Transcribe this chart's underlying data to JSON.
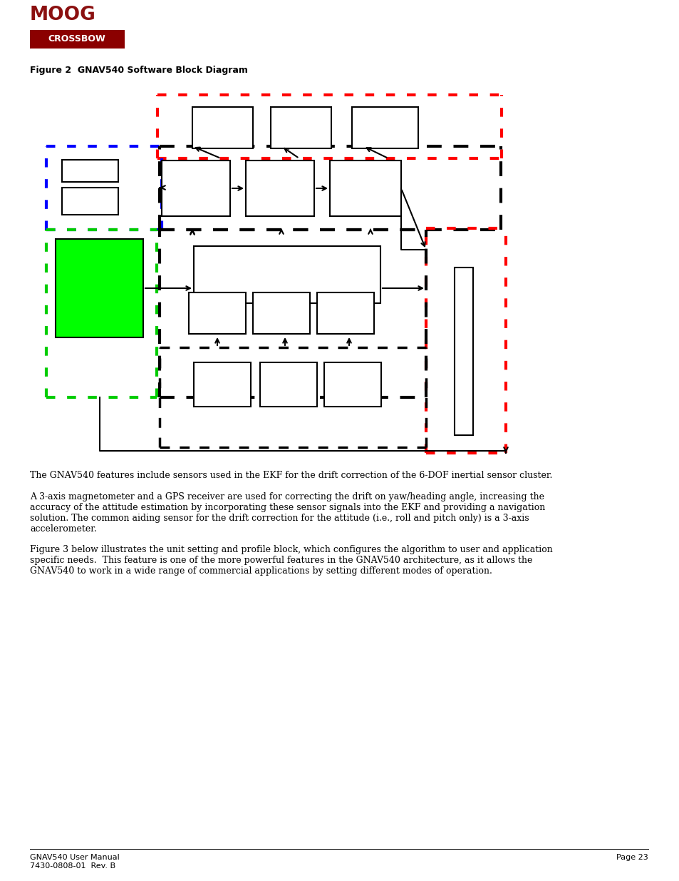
{
  "title": "Figure 2  GNAV540 Software Block Diagram",
  "bg_color": "#ffffff",
  "footer_left": "GNAV540 User Manual\n7430-0808-01  Rev. B",
  "footer_right": "Page 23",
  "para1": "The GNAV540 features include sensors used in the EKF for the drift correction of the 6-DOF inertial sensor cluster.",
  "para2_lines": [
    "A 3-axis magnetometer and a GPS receiver are used for correcting the drift on yaw/heading angle, increasing the",
    "accuracy of the attitude estimation by incorporating these sensor signals into the EKF and providing a navigation",
    "solution. The common aiding sensor for the drift correction for the attitude (i.e., roll and pitch only) is a 3-axis",
    "accelerometer."
  ],
  "para3_lines": [
    "Figure 3 below illustrates the unit setting and profile block, which configures the algorithm to user and application",
    "specific needs.  This feature is one of the more powerful features in the GNAV540 architecture, as it allows the",
    "GNAV540 to work in a wide range of commercial applications by setting different modes of operation."
  ]
}
